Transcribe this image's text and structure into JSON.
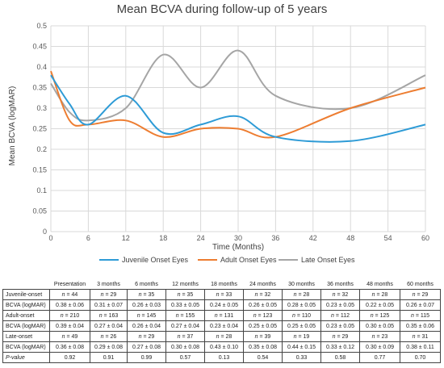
{
  "chart_data": {
    "type": "line",
    "title": "Mean BCVA during follow-up of 5 years",
    "xlabel": "Time (Months)",
    "ylabel": "Mean BCVA (logMAR)",
    "xlim": [
      0,
      60
    ],
    "ylim": [
      0,
      0.5
    ],
    "x_ticks": [
      "0",
      "6",
      "12",
      "18",
      "24",
      "30",
      "36",
      "42",
      "48",
      "54",
      "60"
    ],
    "y_ticks": [
      "0",
      "0.05",
      "0.1",
      "0.15",
      "0.2",
      "0.25",
      "0.3",
      "0.35",
      "0.4",
      "0.45",
      "0.5"
    ],
    "x": [
      0,
      3,
      6,
      12,
      18,
      24,
      30,
      36,
      48,
      60
    ],
    "grid": true,
    "legend_position": "bottom",
    "series": [
      {
        "name": "Juvenile Onset Eyes",
        "color": "#2e9bd6",
        "values": [
          0.38,
          0.31,
          0.26,
          0.33,
          0.24,
          0.26,
          0.28,
          0.23,
          0.22,
          0.26
        ]
      },
      {
        "name": "Adult Onset Eyes",
        "color": "#ed7d31",
        "values": [
          0.39,
          0.27,
          0.26,
          0.27,
          0.23,
          0.25,
          0.25,
          0.23,
          0.3,
          0.35
        ]
      },
      {
        "name": "Late Onset Eyes",
        "color": "#a5a5a5",
        "values": [
          0.36,
          0.29,
          0.27,
          0.3,
          0.43,
          0.35,
          0.44,
          0.33,
          0.3,
          0.38
        ]
      }
    ]
  },
  "table": {
    "headers": [
      "",
      "Presentation",
      "3 months",
      "6 months",
      "12 months",
      "18 months",
      "24 months",
      "30 months",
      "36 months",
      "48 months",
      "60 months"
    ],
    "groups": [
      {
        "label": "Juvenile-onset",
        "n_prefix": "n",
        "n": [
          "= 44",
          "= 29",
          "= 35",
          "= 35",
          "= 33",
          "= 32",
          "= 28",
          "= 32",
          "= 28",
          "= 29"
        ],
        "bcva_label": "BCVA (logMAR)",
        "bcva": [
          "0.38 ± 0.06",
          "0.31 ± 0.07",
          "0.26 ± 0.03",
          "0.33 ± 0.05",
          "0.24 ± 0.05",
          "0.26 ± 0.05",
          "0.28 ± 0.05",
          "0.23 ± 0.05",
          "0.22 ± 0.05",
          "0.26 ± 0.07"
        ]
      },
      {
        "label": "Adult-onset",
        "n_prefix": "n",
        "n": [
          "= 210",
          "= 163",
          "= 145",
          "= 155",
          "= 131",
          "= 123",
          "= 110",
          "= 112",
          "= 125",
          "= 115"
        ],
        "bcva_label": "BCVA (logMAR)",
        "bcva": [
          "0.39 ± 0.04",
          "0.27 ± 0.04",
          "0.26 ± 0.04",
          "0.27 ± 0.04",
          "0.23 ± 0.04",
          "0.25 ± 0.05",
          "0.25 ± 0.05",
          "0.23 ± 0.05",
          "0.30 ± 0.05",
          "0.35 ± 0.06"
        ]
      },
      {
        "label": "Late-onset",
        "n_prefix": "n",
        "n": [
          "= 49",
          "= 26",
          "= 29",
          "= 37",
          "= 28",
          "= 39",
          "= 19",
          "= 29",
          "= 23",
          "= 31"
        ],
        "bcva_label": "BCVA (logMAR)",
        "bcva": [
          "0.36 ± 0.08",
          "0.29 ± 0.08",
          "0.27 ± 0.08",
          "0.30 ± 0.08",
          "0.43 ± 0.10",
          "0.35 ± 0.08",
          "0.44 ± 0.15",
          "0.33 ± 0.12",
          "0.30 ± 0.09",
          "0.38 ± 0.11"
        ]
      }
    ],
    "pvalue_label": "P-value",
    "pvalues": [
      "0.92",
      "0.91",
      "0.99",
      "0.57",
      "0.13",
      "0.54",
      "0.33",
      "0.58",
      "0.77",
      "0.70"
    ]
  }
}
